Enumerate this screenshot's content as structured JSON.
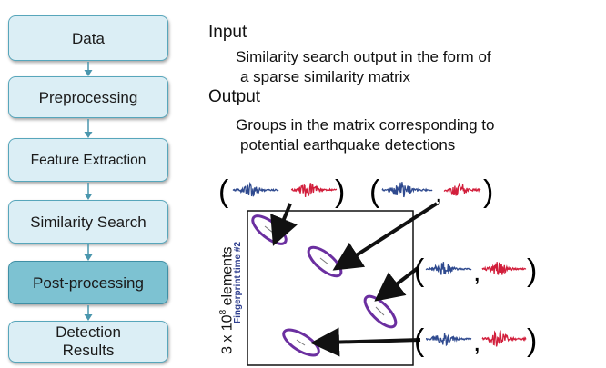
{
  "pipeline": {
    "stages": [
      {
        "id": "data",
        "label": "Data",
        "active": false
      },
      {
        "id": "preprocessing",
        "label": "Preprocessing",
        "active": false
      },
      {
        "id": "feature-extraction",
        "label": "Feature Extraction",
        "active": false
      },
      {
        "id": "similarity-search",
        "label": "Similarity Search",
        "active": false
      },
      {
        "id": "post-processing",
        "label": "Post-processing",
        "active": true
      },
      {
        "id": "detection-results",
        "label": "Detection Results",
        "active": false
      }
    ]
  },
  "description": {
    "input_heading": "Input",
    "input_text_line1": "Similarity search output in the form of",
    "input_text_line2": "a sparse similarity matrix",
    "output_heading": "Output",
    "output_text_line1": "Groups in the matrix corresponding to",
    "output_text_line2": "potential earthquake detections"
  },
  "matrix": {
    "ylabel_main": "3 x 10",
    "ylabel_exp": "8",
    "ylabel_tail": " elements",
    "ylabel_sub": "Fingerprint time #2"
  },
  "colors": {
    "box_fill": "#dbeef5",
    "box_active_fill": "#7dc2d2",
    "box_border": "#57a6bb",
    "arrow": "#4a96ad",
    "ellipse": "#6b2fa0",
    "wave_blue": "#2f4a8f",
    "wave_red": "#d21f3c"
  }
}
